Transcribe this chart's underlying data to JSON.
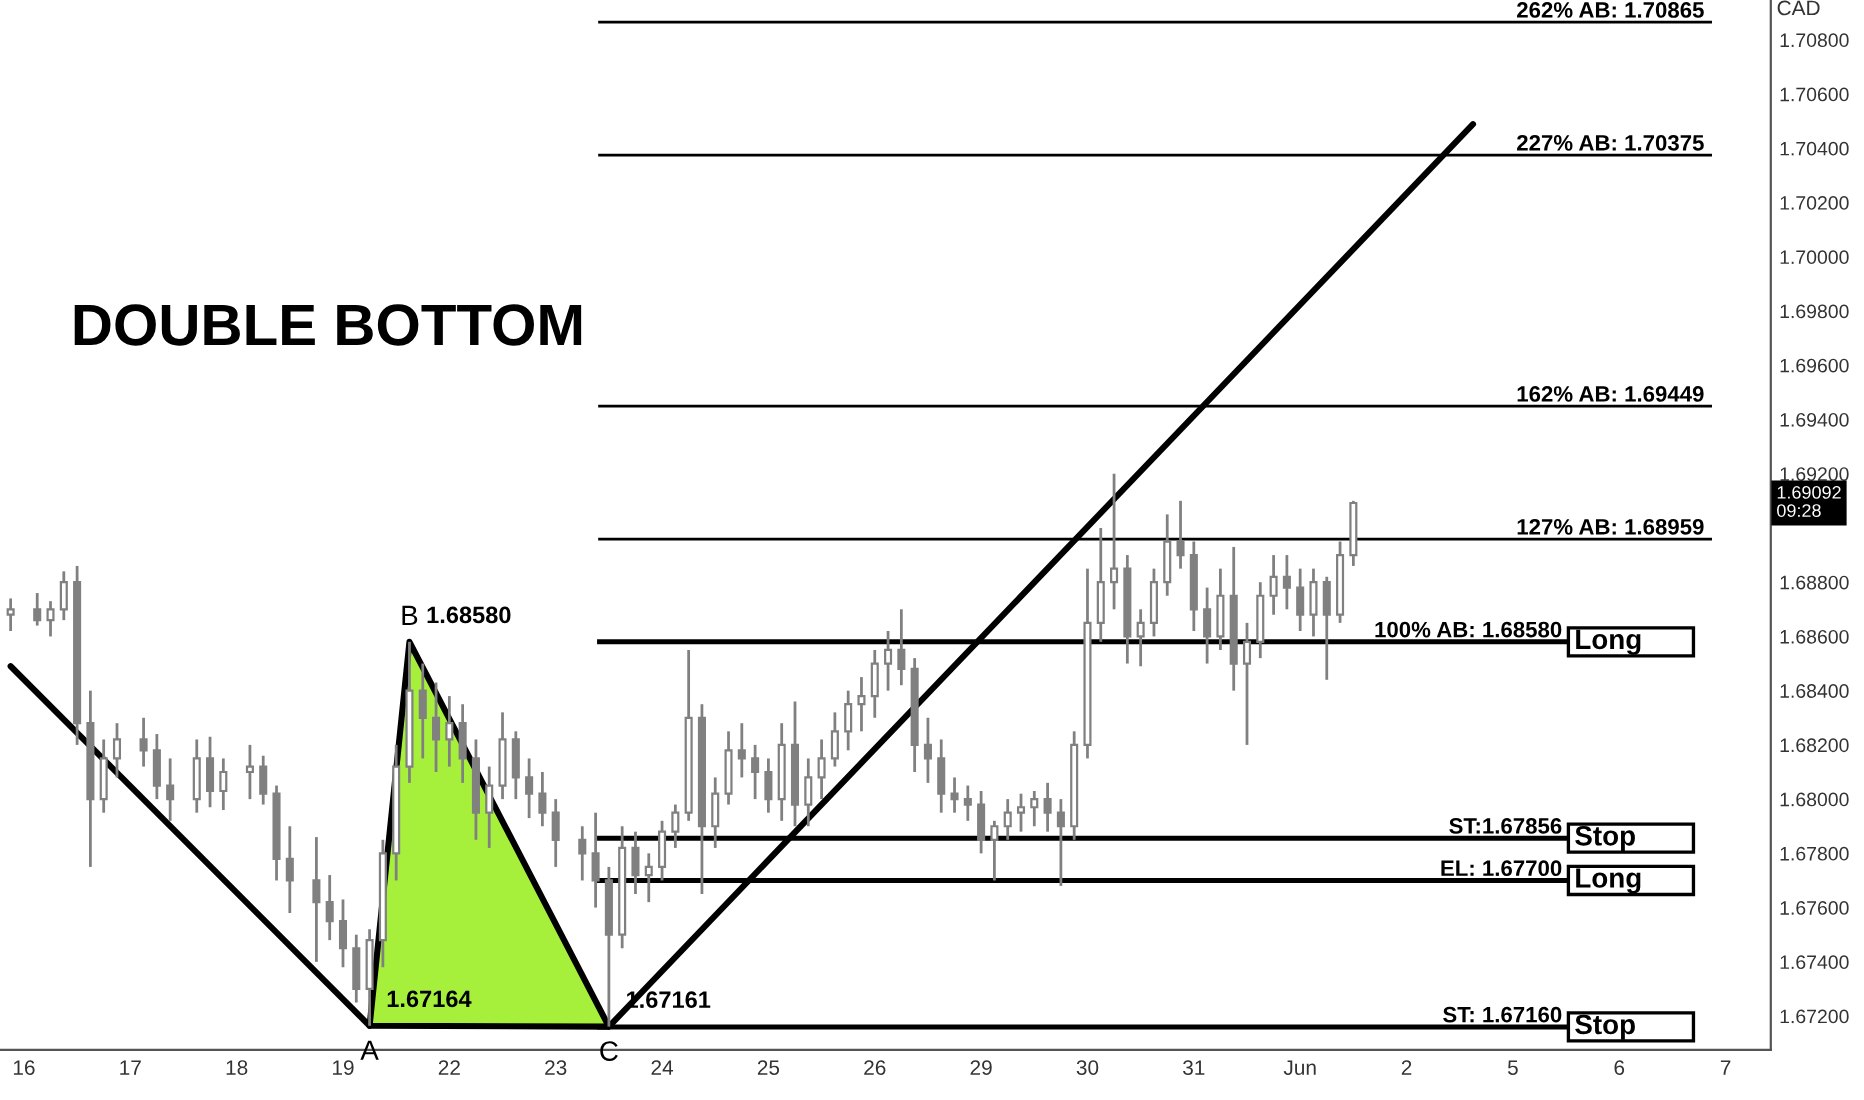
{
  "chart_data": {
    "type": "candlestick",
    "title": "DOUBLE BOTTOM",
    "ylabel": "CAD",
    "color": "#808080",
    "categories": [
      null,
      "16",
      null,
      null,
      null,
      null,
      null,
      null,
      null,
      "17",
      null,
      null,
      null,
      null,
      null,
      null,
      null,
      "18",
      null,
      null,
      null,
      null,
      null,
      null,
      null,
      "19",
      null,
      null,
      null,
      null,
      null,
      null,
      null,
      "22",
      null,
      null,
      null,
      null,
      null,
      null,
      null,
      "23",
      null,
      null,
      null,
      null,
      null,
      null,
      null,
      "24",
      null,
      null,
      null,
      null,
      null,
      null,
      null,
      "25",
      null,
      null,
      null,
      null,
      null,
      null,
      null,
      "26",
      null,
      null,
      null,
      null,
      null,
      null,
      null,
      "29",
      null,
      null,
      null,
      null,
      null,
      null,
      null,
      "30",
      null,
      null,
      null,
      null,
      null,
      null,
      null,
      "31",
      null,
      null,
      null,
      null,
      null,
      null,
      null,
      "Jun",
      null,
      null,
      null,
      null,
      null,
      null,
      null,
      "2",
      null,
      null,
      null,
      null,
      null,
      null,
      null,
      "5",
      null,
      null,
      null,
      null,
      null,
      null,
      null,
      "6",
      null,
      null,
      null,
      null,
      null,
      null,
      null,
      "7",
      null,
      null,
      null
    ],
    "ohlc": [
      [
        1.6868,
        1.6874,
        1.6862,
        1.687
      ],
      null,
      [
        1.687,
        1.6876,
        1.6864,
        1.6866
      ],
      [
        1.6866,
        1.6873,
        1.686,
        1.687
      ],
      [
        1.687,
        1.6884,
        1.6866,
        1.688
      ],
      [
        1.688,
        1.6886,
        1.682,
        1.6828
      ],
      [
        1.6828,
        1.684,
        1.6775,
        1.68
      ],
      [
        1.68,
        1.6822,
        1.6795,
        1.6815
      ],
      [
        1.6815,
        1.6828,
        1.6808,
        1.6822
      ],
      null,
      [
        1.6822,
        1.683,
        1.6812,
        1.6818
      ],
      [
        1.6818,
        1.6824,
        1.68,
        1.6805
      ],
      [
        1.6805,
        1.6815,
        1.6792,
        1.68
      ],
      null,
      [
        1.68,
        1.6822,
        1.6795,
        1.6815
      ],
      [
        1.6815,
        1.6823,
        1.6797,
        1.6803
      ],
      [
        1.6803,
        1.6815,
        1.6796,
        1.681
      ],
      null,
      [
        1.681,
        1.682,
        1.68,
        1.6812
      ],
      [
        1.6812,
        1.6816,
        1.6798,
        1.6802
      ],
      [
        1.6802,
        1.6805,
        1.677,
        1.6778
      ],
      [
        1.6778,
        1.679,
        1.6758,
        1.677
      ],
      null,
      [
        1.677,
        1.6786,
        1.674,
        1.6762
      ],
      [
        1.6762,
        1.6772,
        1.6748,
        1.6755
      ],
      [
        1.6755,
        1.6763,
        1.6738,
        1.6745
      ],
      [
        1.6745,
        1.675,
        1.6725,
        1.673
      ],
      [
        1.673,
        1.6752,
        1.67164,
        1.6748
      ],
      [
        1.6748,
        1.6785,
        1.6738,
        1.678
      ],
      [
        1.678,
        1.682,
        1.677,
        1.6812
      ],
      [
        1.6812,
        1.6858,
        1.6806,
        1.684
      ],
      [
        1.684,
        1.685,
        1.6815,
        1.683
      ],
      [
        1.683,
        1.6843,
        1.681,
        1.6822
      ],
      [
        1.6822,
        1.6838,
        1.6812,
        1.6828
      ],
      [
        1.6828,
        1.6835,
        1.6806,
        1.6815
      ],
      [
        1.6815,
        1.6822,
        1.6785,
        1.6795
      ],
      [
        1.6795,
        1.6812,
        1.6782,
        1.6805
      ],
      [
        1.6805,
        1.6832,
        1.68,
        1.6822
      ],
      [
        1.6822,
        1.6825,
        1.68,
        1.6808
      ],
      [
        1.6808,
        1.6815,
        1.6793,
        1.6802
      ],
      [
        1.6802,
        1.681,
        1.679,
        1.6795
      ],
      [
        1.6795,
        1.68,
        1.6775,
        1.6785
      ],
      null,
      [
        1.6785,
        1.679,
        1.677,
        1.678
      ],
      [
        1.678,
        1.6795,
        1.676,
        1.677
      ],
      [
        1.677,
        1.6775,
        1.67161,
        1.675
      ],
      [
        1.675,
        1.679,
        1.6745,
        1.6782
      ],
      [
        1.6782,
        1.6788,
        1.6765,
        1.6772
      ],
      [
        1.6772,
        1.678,
        1.6762,
        1.6775
      ],
      [
        1.6775,
        1.6792,
        1.677,
        1.6788
      ],
      [
        1.6788,
        1.6798,
        1.6782,
        1.6795
      ],
      [
        1.6795,
        1.6855,
        1.6792,
        1.683
      ],
      [
        1.683,
        1.6835,
        1.6765,
        1.679
      ],
      [
        1.679,
        1.6808,
        1.6782,
        1.6802
      ],
      [
        1.6802,
        1.6825,
        1.6798,
        1.6818
      ],
      [
        1.6818,
        1.6828,
        1.6808,
        1.6815
      ],
      [
        1.6815,
        1.682,
        1.68,
        1.681
      ],
      [
        1.681,
        1.6815,
        1.6795,
        1.68
      ],
      [
        1.68,
        1.6828,
        1.6792,
        1.682
      ],
      [
        1.682,
        1.6836,
        1.679,
        1.6798
      ],
      [
        1.6798,
        1.6815,
        1.679,
        1.6808
      ],
      [
        1.6808,
        1.6822,
        1.68,
        1.6815
      ],
      [
        1.6815,
        1.6832,
        1.6812,
        1.6825
      ],
      [
        1.6825,
        1.684,
        1.6818,
        1.6835
      ],
      [
        1.6835,
        1.6845,
        1.6825,
        1.6838
      ],
      [
        1.6838,
        1.6855,
        1.683,
        1.685
      ],
      [
        1.685,
        1.6862,
        1.684,
        1.6855
      ],
      [
        1.6855,
        1.687,
        1.6842,
        1.6848
      ],
      [
        1.6848,
        1.6852,
        1.681,
        1.682
      ],
      [
        1.682,
        1.683,
        1.6806,
        1.6815
      ],
      [
        1.6815,
        1.6822,
        1.6795,
        1.6802
      ],
      [
        1.6802,
        1.6808,
        1.6795,
        1.68
      ],
      [
        1.68,
        1.6805,
        1.6792,
        1.6798
      ],
      [
        1.6798,
        1.6803,
        1.678,
        1.6785
      ],
      [
        1.6785,
        1.6792,
        1.677,
        1.679
      ],
      [
        1.679,
        1.68,
        1.6785,
        1.6795
      ],
      [
        1.6795,
        1.6802,
        1.6788,
        1.6797
      ],
      [
        1.6797,
        1.6803,
        1.679,
        1.68
      ],
      [
        1.68,
        1.6806,
        1.6788,
        1.6795
      ],
      [
        1.6795,
        1.68,
        1.6768,
        1.679
      ],
      [
        1.679,
        1.6825,
        1.6785,
        1.682
      ],
      [
        1.682,
        1.6885,
        1.6815,
        1.6865
      ],
      [
        1.6865,
        1.69,
        1.6858,
        1.688
      ],
      [
        1.688,
        1.692,
        1.687,
        1.6885
      ],
      [
        1.6885,
        1.689,
        1.685,
        1.686
      ],
      [
        1.686,
        1.687,
        1.6849,
        1.6865
      ],
      [
        1.6865,
        1.6885,
        1.686,
        1.688
      ],
      [
        1.688,
        1.6905,
        1.6875,
        1.6895
      ],
      [
        1.6895,
        1.691,
        1.6885,
        1.689
      ],
      [
        1.689,
        1.6895,
        1.6862,
        1.687
      ],
      [
        1.687,
        1.6878,
        1.685,
        1.686
      ],
      [
        1.686,
        1.6885,
        1.6855,
        1.6875
      ],
      [
        1.6875,
        1.6893,
        1.684,
        1.685
      ],
      [
        1.685,
        1.6865,
        1.682,
        1.6858
      ],
      [
        1.6858,
        1.688,
        1.6852,
        1.6875
      ],
      [
        1.6875,
        1.689,
        1.6868,
        1.6882
      ],
      [
        1.6882,
        1.689,
        1.687,
        1.6878
      ],
      [
        1.6878,
        1.6885,
        1.6862,
        1.6868
      ],
      [
        1.6868,
        1.6885,
        1.686,
        1.688
      ],
      [
        1.688,
        1.6882,
        1.6844,
        1.6868
      ],
      [
        1.6868,
        1.6895,
        1.6865,
        1.689
      ],
      [
        1.689,
        1.691,
        1.6886,
        1.69092
      ],
      null,
      null,
      null,
      null,
      null,
      null,
      null,
      null,
      null,
      null,
      null,
      null,
      null,
      null,
      null,
      null,
      null,
      null,
      null,
      null,
      null,
      null,
      null,
      null,
      null,
      null,
      null,
      null,
      null,
      null,
      null
    ],
    "series": [
      {
        "type": "area",
        "color": "#a6f03c",
        "values": [
          null,
          null,
          null,
          null,
          null,
          null,
          null,
          null,
          null,
          null,
          null,
          null,
          null,
          null,
          null,
          null,
          null,
          null,
          null,
          null,
          null,
          null,
          null,
          null,
          null,
          null,
          null,
          1.67164,
          null,
          null,
          1.6858,
          null,
          null,
          null,
          null,
          null,
          null,
          null,
          null,
          null,
          null,
          null,
          null,
          null,
          null,
          1.67161,
          null,
          null,
          null,
          null,
          null,
          null,
          null,
          null,
          null,
          null,
          null,
          null,
          null,
          null,
          null,
          null,
          null,
          null,
          null,
          null,
          null,
          null,
          null,
          null,
          null,
          null,
          null,
          null,
          null,
          null,
          null,
          null,
          null,
          null,
          null,
          null,
          null,
          null,
          null,
          null,
          null,
          null,
          null,
          null,
          null,
          null,
          null,
          null,
          null,
          null,
          null,
          null,
          null,
          null,
          null,
          null,
          null,
          null,
          null,
          null,
          null,
          null,
          null,
          null,
          null,
          null,
          null,
          null,
          null,
          null,
          null,
          null,
          null,
          null,
          null,
          null,
          null,
          null,
          null,
          null,
          null,
          null,
          null,
          null,
          null,
          null,
          null
        ]
      },
      {
        "type": "line",
        "color": "#000000",
        "values": [
          1.6849,
          null,
          null,
          null,
          null,
          null,
          null,
          null,
          null,
          null,
          null,
          null,
          null,
          null,
          null,
          null,
          null,
          null,
          null,
          null,
          null,
          null,
          null,
          null,
          null,
          null,
          null,
          1.67164,
          null,
          null,
          null,
          null,
          null,
          null,
          null,
          null,
          null,
          null,
          null,
          null,
          null,
          null,
          null,
          null,
          null,
          null,
          null,
          null,
          null,
          null,
          null,
          null,
          null,
          null,
          null,
          null,
          null,
          null,
          null,
          null,
          null,
          null,
          null,
          null,
          null,
          null,
          null,
          null,
          null,
          null,
          null,
          null,
          null,
          null,
          null,
          null,
          null,
          null,
          null,
          null,
          null,
          null,
          null,
          null,
          null,
          null,
          null,
          null,
          null,
          null,
          null,
          null,
          null,
          null,
          null,
          null,
          null,
          null,
          null,
          null,
          null,
          null,
          null,
          null,
          null,
          null,
          null,
          null,
          null,
          null,
          null,
          null,
          null,
          null,
          null,
          null,
          null,
          null,
          null,
          null,
          null,
          null,
          null,
          null,
          null,
          null,
          null,
          null,
          null,
          null,
          null,
          null,
          null
        ]
      },
      {
        "type": "line",
        "color": "#000000",
        "values": [
          null,
          null,
          null,
          null,
          null,
          null,
          null,
          null,
          null,
          null,
          null,
          null,
          null,
          null,
          null,
          null,
          null,
          null,
          null,
          null,
          null,
          null,
          null,
          null,
          null,
          null,
          null,
          null,
          null,
          null,
          null,
          null,
          null,
          null,
          null,
          null,
          null,
          null,
          null,
          null,
          null,
          null,
          null,
          null,
          null,
          1.67161,
          null,
          null,
          null,
          null,
          null,
          null,
          null,
          null,
          null,
          null,
          null,
          null,
          null,
          null,
          null,
          null,
          null,
          null,
          null,
          null,
          null,
          null,
          null,
          null,
          null,
          null,
          null,
          null,
          null,
          null,
          null,
          null,
          null,
          null,
          null,
          null,
          null,
          null,
          null,
          null,
          null,
          null,
          null,
          null,
          null,
          null,
          null,
          null,
          null,
          null,
          null,
          null,
          null,
          null,
          null,
          null,
          null,
          null,
          null,
          null,
          null,
          null,
          null,
          null,
          1.70489,
          null,
          null,
          null,
          null,
          null,
          null,
          null,
          null,
          null,
          null,
          null,
          null,
          null,
          null,
          null,
          null,
          null,
          null,
          null,
          null,
          null,
          null
        ]
      }
    ],
    "ref_lines": [
      {
        "axis": "y",
        "value": 1.70865,
        "label": "262% AB: 1.70865"
      },
      {
        "axis": "y",
        "value": 1.70375,
        "label": "227% AB: 1.70375"
      },
      {
        "axis": "y",
        "value": 1.69449,
        "label": "162% AB: 1.69449"
      },
      {
        "axis": "y",
        "value": 1.68959,
        "label": "127% AB: 1.68959"
      },
      {
        "axis": "y",
        "value": 1.6858,
        "label": "100% AB: 1.68580"
      },
      {
        "axis": "y",
        "value": 1.67856,
        "label": "ST:1.67856"
      },
      {
        "axis": "y",
        "value": 1.677,
        "label": "EL: 1.67700"
      },
      {
        "axis": "y",
        "value": 1.6716,
        "label": "ST: 1.67160"
      }
    ],
    "annotations": [
      {
        "text": "A",
        "y": 1.67164
      },
      {
        "text": "B",
        "y": 1.6858
      },
      {
        "text": "C",
        "y": 1.67161
      },
      {
        "text": "1.67164",
        "y": 1.67164
      },
      "1.68580",
      {
        "text": "1.67161",
        "y": 1.67161
      },
      "Long",
      "Stop",
      "Long",
      "Stop",
      {
        "text": "1.69092\n09:28",
        "y": 1.69092
      }
    ],
    "ylim": [
      1.67075,
      1.70947
    ],
    "yticks": [
      {
        "value": 1.672,
        "label": "1.67200"
      },
      {
        "value": 1.674,
        "label": "1.67400"
      },
      {
        "value": 1.676,
        "label": "1.67600"
      },
      {
        "value": 1.678,
        "label": "1.67800"
      },
      {
        "value": 1.68,
        "label": "1.68000"
      },
      {
        "value": 1.682,
        "label": "1.68200"
      },
      {
        "value": 1.684,
        "label": "1.68400"
      },
      {
        "value": 1.686,
        "label": "1.68600"
      },
      {
        "value": 1.688,
        "label": "1.68800"
      },
      {
        "value": 1.692,
        "label": "1.69200"
      },
      {
        "value": 1.694,
        "label": "1.69400"
      },
      {
        "value": 1.696,
        "label": "1.69600"
      },
      {
        "value": 1.698,
        "label": "1.69800"
      },
      {
        "value": 1.7,
        "label": "1.70000"
      },
      {
        "value": 1.702,
        "label": "1.70200"
      },
      {
        "value": 1.704,
        "label": "1.70400"
      },
      {
        "value": 1.706,
        "label": "1.70600"
      },
      {
        "value": 1.708,
        "label": "1.70800"
      }
    ]
  }
}
